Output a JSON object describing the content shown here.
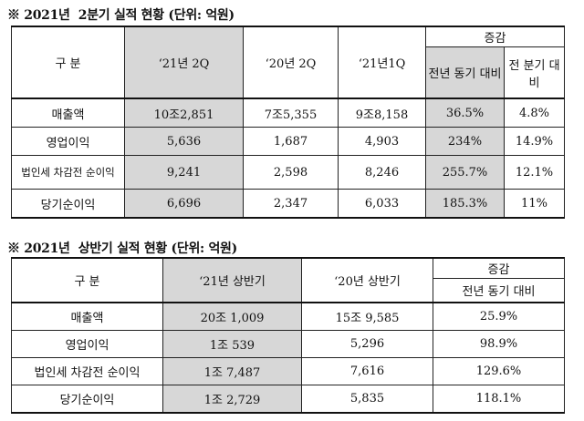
{
  "section1": {
    "title": "※ 2021년  2분기 실적 현황 (단위: 억원)",
    "headers": {
      "category": "구 분",
      "col1": "‘21년 2Q",
      "col2": "‘20년 2Q",
      "col3": "‘21년1Q",
      "change": "증감",
      "yoy": "전년 동기 대비",
      "qoq": "전 분기 대비"
    },
    "rows": [
      {
        "label": "매출액",
        "c1": "10조2,851",
        "c2": "7조5,355",
        "c3": "9조8,158",
        "yoy": "36.5%",
        "qoq": "4.8%"
      },
      {
        "label": "영업이익",
        "c1": "5,636",
        "c2": "1,687",
        "c3": "4,903",
        "yoy": "234%",
        "qoq": "14.9%"
      },
      {
        "label": "법인세 차감전 순이익",
        "c1": "9,241",
        "c2": "2,598",
        "c3": "8,246",
        "yoy": "255.7%",
        "qoq": "12.1%"
      },
      {
        "label": "당기순이익",
        "c1": "6,696",
        "c2": "2,347",
        "c3": "6,033",
        "yoy": "185.3%",
        "qoq": "11%"
      }
    ]
  },
  "section2": {
    "title": "※ 2021년  상반기 실적 현황 (단위: 억원)",
    "headers": {
      "category": "구 분",
      "col1": "‘21년 상반기",
      "col2": "‘20년 상반기",
      "change": "증감",
      "yoy": "전년 동기 대비"
    },
    "rows": [
      {
        "label": "매출액",
        "c1": "20조 1,009",
        "c2": "15조 9,585",
        "yoy": "25.9%"
      },
      {
        "label": "영업이익",
        "c1": "1조 539",
        "c2": "5,296",
        "yoy": "98.9%"
      },
      {
        "label": "법인세 차감전 순이익",
        "c1": "1조 7,487",
        "c2": "7,616",
        "yoy": "129.6%"
      },
      {
        "label": "당기순이익",
        "c1": "1조 2,729",
        "c2": "5,835",
        "yoy": "118.1%"
      }
    ]
  }
}
